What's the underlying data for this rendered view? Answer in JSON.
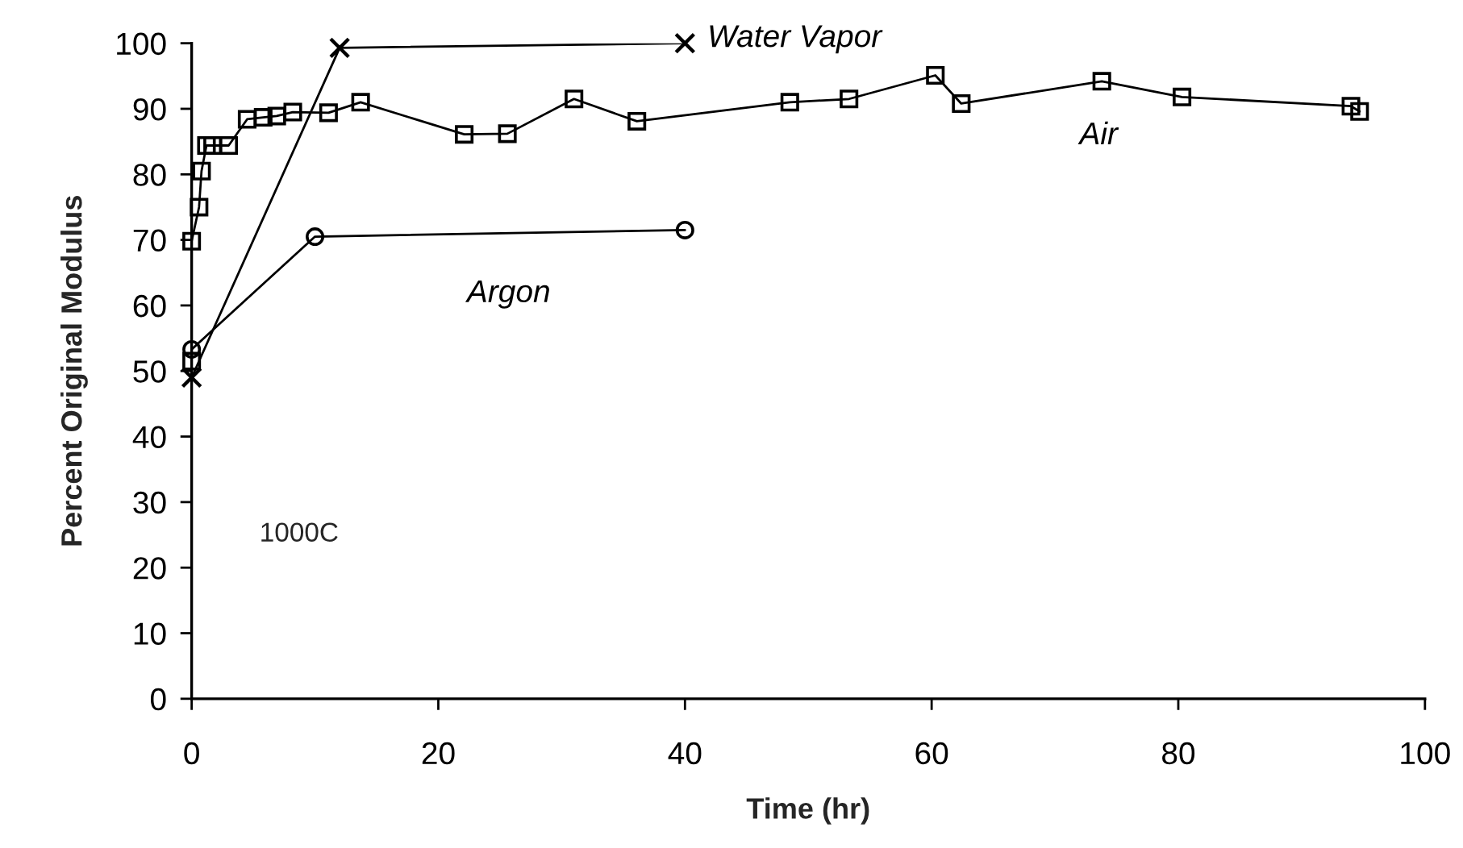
{
  "chart_data": {
    "type": "line",
    "xlabel": "Time (hr)",
    "ylabel": "Percent Original Modulus",
    "xlim": [
      0,
      100
    ],
    "xticks": [
      0,
      20,
      40,
      60,
      80,
      100
    ],
    "ylim": [
      0,
      100
    ],
    "yticks": [
      0,
      10,
      20,
      30,
      40,
      50,
      60,
      70,
      80,
      90,
      100
    ],
    "grid": false,
    "legend": false,
    "line_style": "solid",
    "annotations": [
      "1000C"
    ],
    "series": [
      {
        "name": "Water Vapor",
        "color": "#000000",
        "marker": "cross",
        "x": [
          0,
          12,
          40
        ],
        "values": [
          49,
          99.3,
          100
        ]
      },
      {
        "name": "Air",
        "color": "#000000",
        "marker": "square",
        "x": [
          0,
          0,
          0.6,
          0.8,
          1.2,
          1.7,
          3.0,
          4.5,
          5.8,
          6.9,
          8.2,
          11.1,
          13.7,
          22.1,
          25.6,
          31,
          36.1,
          48.5,
          53.3,
          60.3,
          62.4,
          73.8,
          80.3,
          94,
          94.7
        ],
        "values": [
          51.5,
          69.8,
          75,
          80.5,
          84.4,
          84.4,
          84.4,
          88.4,
          88.7,
          88.9,
          89.5,
          89.4,
          91,
          86.1,
          86.2,
          91.5,
          88.1,
          91,
          91.5,
          95.1,
          90.8,
          94.2,
          91.8,
          90.4,
          89.6
        ]
      },
      {
        "name": "Argon",
        "color": "#000000",
        "marker": "circle",
        "x": [
          0,
          10,
          40
        ],
        "values": [
          53.3,
          70.5,
          71.5
        ]
      }
    ]
  }
}
